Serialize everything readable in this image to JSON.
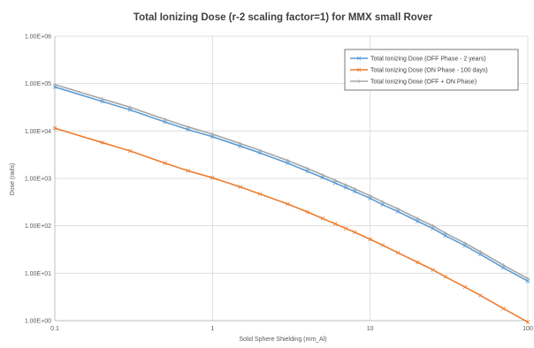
{
  "chart_data": {
    "type": "line",
    "title": "Total Ionizing Dose (r-2 scaling factor=1) for MMX small Rover",
    "xlabel": "Solid Sphere Shielding (mm_Al)",
    "ylabel": "Dose (rads)",
    "x_scale": "log",
    "y_scale": "log",
    "xlim": [
      0.1,
      100
    ],
    "ylim": [
      1,
      1000000
    ],
    "x_ticks": [
      0.1,
      1,
      10,
      100
    ],
    "x_tick_labels": [
      "0.1",
      "1",
      "10",
      "100"
    ],
    "y_ticks": [
      1,
      10,
      100,
      1000,
      10000,
      100000,
      1000000
    ],
    "y_tick_labels": [
      "1.00E+00",
      "1.00E+01",
      "1.00E+02",
      "1.00E+03",
      "1.00E+04",
      "1.00E+05",
      "1.00E+06"
    ],
    "grid": true,
    "legend_position": "top-right",
    "series": [
      {
        "name": "Total Ionizing Dose (OFF Phase - 2 years)",
        "color": "#5b9bd5",
        "marker": "x",
        "points": [
          [
            0.1,
            85000
          ],
          [
            0.2,
            42000
          ],
          [
            0.3,
            28000
          ],
          [
            0.5,
            15500
          ],
          [
            0.7,
            10700
          ],
          [
            1,
            7600
          ],
          [
            1.5,
            4800
          ],
          [
            2,
            3450
          ],
          [
            3,
            2100
          ],
          [
            4,
            1420
          ],
          [
            5,
            1040
          ],
          [
            6,
            800
          ],
          [
            7,
            640
          ],
          [
            8,
            530
          ],
          [
            10,
            380
          ],
          [
            12,
            280
          ],
          [
            15,
            200
          ],
          [
            20,
            125
          ],
          [
            25,
            88
          ],
          [
            30,
            62
          ],
          [
            40,
            38
          ],
          [
            50,
            25
          ],
          [
            70,
            13
          ],
          [
            100,
            6.8
          ]
        ]
      },
      {
        "name": "Total Ionizing Dose (ON Phase - 100 days)",
        "color": "#ed7d31",
        "marker": "x",
        "points": [
          [
            0.1,
            11500
          ],
          [
            0.2,
            5700
          ],
          [
            0.3,
            3800
          ],
          [
            0.5,
            2100
          ],
          [
            0.7,
            1450
          ],
          [
            1,
            1030
          ],
          [
            1.5,
            660
          ],
          [
            2,
            470
          ],
          [
            3,
            288
          ],
          [
            4,
            196
          ],
          [
            5,
            143
          ],
          [
            6,
            110
          ],
          [
            7,
            88
          ],
          [
            8,
            73
          ],
          [
            10,
            52
          ],
          [
            12,
            39
          ],
          [
            15,
            27
          ],
          [
            20,
            17
          ],
          [
            25,
            11.8
          ],
          [
            30,
            8.4
          ],
          [
            40,
            5.1
          ],
          [
            50,
            3.4
          ],
          [
            70,
            1.8
          ],
          [
            100,
            0.93
          ]
        ]
      },
      {
        "name": "Total Ionizing Dose (OFF + ON Phase)",
        "color": "#a5a5a5",
        "marker": "+",
        "points": [
          [
            0.1,
            96000
          ],
          [
            0.2,
            47500
          ],
          [
            0.3,
            31800
          ],
          [
            0.5,
            17600
          ],
          [
            0.7,
            12200
          ],
          [
            1,
            8600
          ],
          [
            1.5,
            5450
          ],
          [
            2,
            3900
          ],
          [
            3,
            2390
          ],
          [
            4,
            1620
          ],
          [
            5,
            1180
          ],
          [
            6,
            910
          ],
          [
            7,
            730
          ],
          [
            8,
            600
          ],
          [
            10,
            430
          ],
          [
            12,
            320
          ],
          [
            15,
            228
          ],
          [
            20,
            142
          ],
          [
            25,
            100
          ],
          [
            30,
            70
          ],
          [
            40,
            43
          ],
          [
            50,
            28.4
          ],
          [
            70,
            14.8
          ],
          [
            100,
            7.7
          ]
        ]
      }
    ]
  }
}
